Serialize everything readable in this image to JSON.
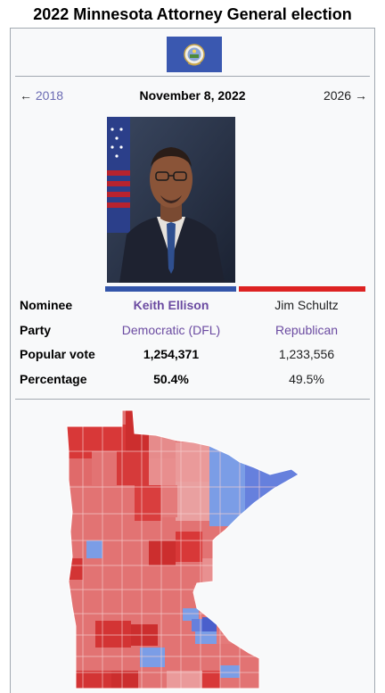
{
  "title": "2022 Minnesota Attorney General election",
  "nav": {
    "prev_arrow": "←",
    "prev_label": "2018",
    "date": "November 8, 2022",
    "next_label": "2026",
    "next_arrow": "→"
  },
  "colors": {
    "democratic": "#3355aa",
    "republican": "#dd2222"
  },
  "table": {
    "rows": [
      {
        "label": "Nominee",
        "c1": "Keith Ellison",
        "c2": "Jim Schultz"
      },
      {
        "label": "Party",
        "c1": "Democratic (DFL)",
        "c2": "Republican"
      },
      {
        "label": "Popular vote",
        "c1": "1,254,371",
        "c2": "1,233,556"
      },
      {
        "label": "Percentage",
        "c1": "50.4%",
        "c2": "49.5%"
      }
    ]
  }
}
